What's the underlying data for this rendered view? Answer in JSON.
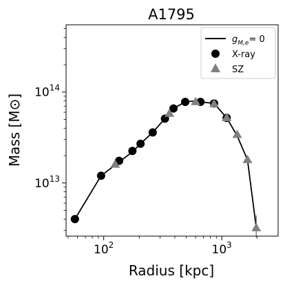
{
  "chart_data": {
    "type": "line",
    "title": "A1795",
    "xlabel": "Radius [kpc]",
    "ylabel": "Mass [M⊙]",
    "x_scale": "log",
    "y_scale": "log",
    "xlim": [
      48,
      3000
    ],
    "ylim": [
      2600000000000.0,
      550000000000000.0
    ],
    "grid": false,
    "legend_position": "top-right",
    "x_ticks": [
      {
        "value": 100,
        "base": "10",
        "exp": "2"
      },
      {
        "value": 1000,
        "base": "10",
        "exp": "3"
      }
    ],
    "y_ticks": [
      {
        "value": 10000000000000.0,
        "base": "10",
        "exp": "13"
      },
      {
        "value": 100000000000000.0,
        "base": "10",
        "exp": "14"
      }
    ],
    "series": [
      {
        "name": "g_{M,e} = 0",
        "kind": "line",
        "color": "#000000",
        "x": [
          57,
          95,
          135,
          175,
          205,
          260,
          330,
          390,
          490,
          600,
          660,
          860,
          1100,
          1350,
          1650,
          1960
        ],
        "y": [
          4000000000000.0,
          12000000000000.0,
          17000000000000.0,
          22000000000000.0,
          27000000000000.0,
          36000000000000.0,
          51000000000000.0,
          66000000000000.0,
          78000000000000.0,
          80000000000000.0,
          78000000000000.0,
          75000000000000.0,
          52000000000000.0,
          33000000000000.0,
          18000000000000.0,
          3200000000000.0
        ]
      },
      {
        "name": "X-ray",
        "kind": "circle",
        "color": "#000000",
        "x": [
          57,
          95,
          135,
          175,
          205,
          260,
          330,
          390,
          490,
          660,
          860,
          1100
        ],
        "y": [
          4000000000000.0,
          12000000000000.0,
          17500000000000.0,
          22500000000000.0,
          27000000000000.0,
          36000000000000.0,
          51000000000000.0,
          66000000000000.0,
          78000000000000.0,
          78000000000000.0,
          75000000000000.0,
          52000000000000.0
        ]
      },
      {
        "name": "SZ",
        "kind": "triangle",
        "color": "#808080",
        "x": [
          125,
          360,
          600,
          860,
          1100,
          1350,
          1650,
          1960
        ],
        "y": [
          16000000000000.0,
          58000000000000.0,
          78000000000000.0,
          74000000000000.0,
          52000000000000.0,
          34000000000000.0,
          18000000000000.0,
          3200000000000.0
        ],
        "yerr_low": [
          0,
          0,
          0,
          0,
          0,
          0,
          0,
          700000000000.0
        ],
        "yerr_high": [
          0,
          0,
          0,
          0,
          0,
          0,
          0,
          1200000000000.0
        ]
      }
    ],
    "legend": [
      {
        "label": "= 0",
        "symbol": "gM,e",
        "kind": "line"
      },
      {
        "label": "X-ray",
        "kind": "circle"
      },
      {
        "label": "SZ",
        "kind": "triangle"
      }
    ]
  }
}
